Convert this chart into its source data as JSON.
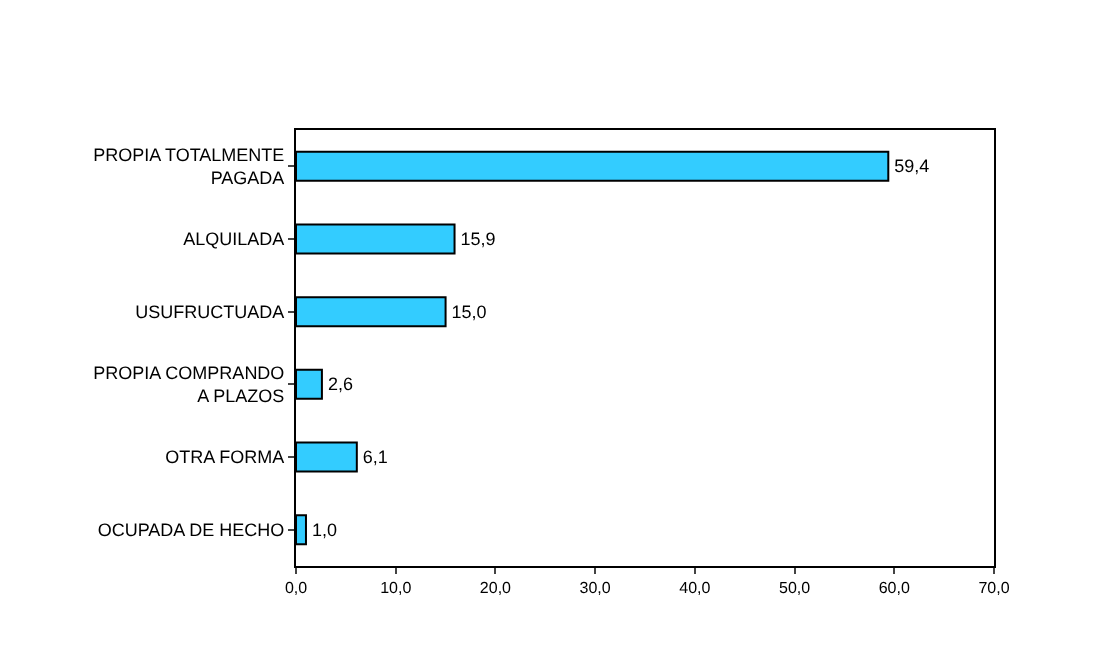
{
  "chart_data": {
    "type": "bar",
    "orientation": "horizontal",
    "categories": [
      "PROPIA TOTALMENTE\nPAGADA",
      "ALQUILADA",
      "USUFRUCTUADA",
      "PROPIA COMPRANDO\nA PLAZOS",
      "OTRA FORMA",
      "OCUPADA DE HECHO"
    ],
    "values": [
      59.4,
      15.9,
      15.0,
      2.6,
      6.1,
      1.0
    ],
    "value_labels": [
      "59,4",
      "15,9",
      "15,0",
      "2,6",
      "6,1",
      "1,0"
    ],
    "color": "#33ccff",
    "xlim": [
      0,
      70
    ],
    "xticks": [
      {
        "value": 0,
        "label": "0,0"
      },
      {
        "value": 10,
        "label": "10,0"
      },
      {
        "value": 20,
        "label": "20,0"
      },
      {
        "value": 30,
        "label": "30,0"
      },
      {
        "value": 40,
        "label": "40,0"
      },
      {
        "value": 50,
        "label": "50,0"
      },
      {
        "value": 60,
        "label": "60,0"
      },
      {
        "value": 70,
        "label": "70,0"
      }
    ],
    "legend": false
  }
}
